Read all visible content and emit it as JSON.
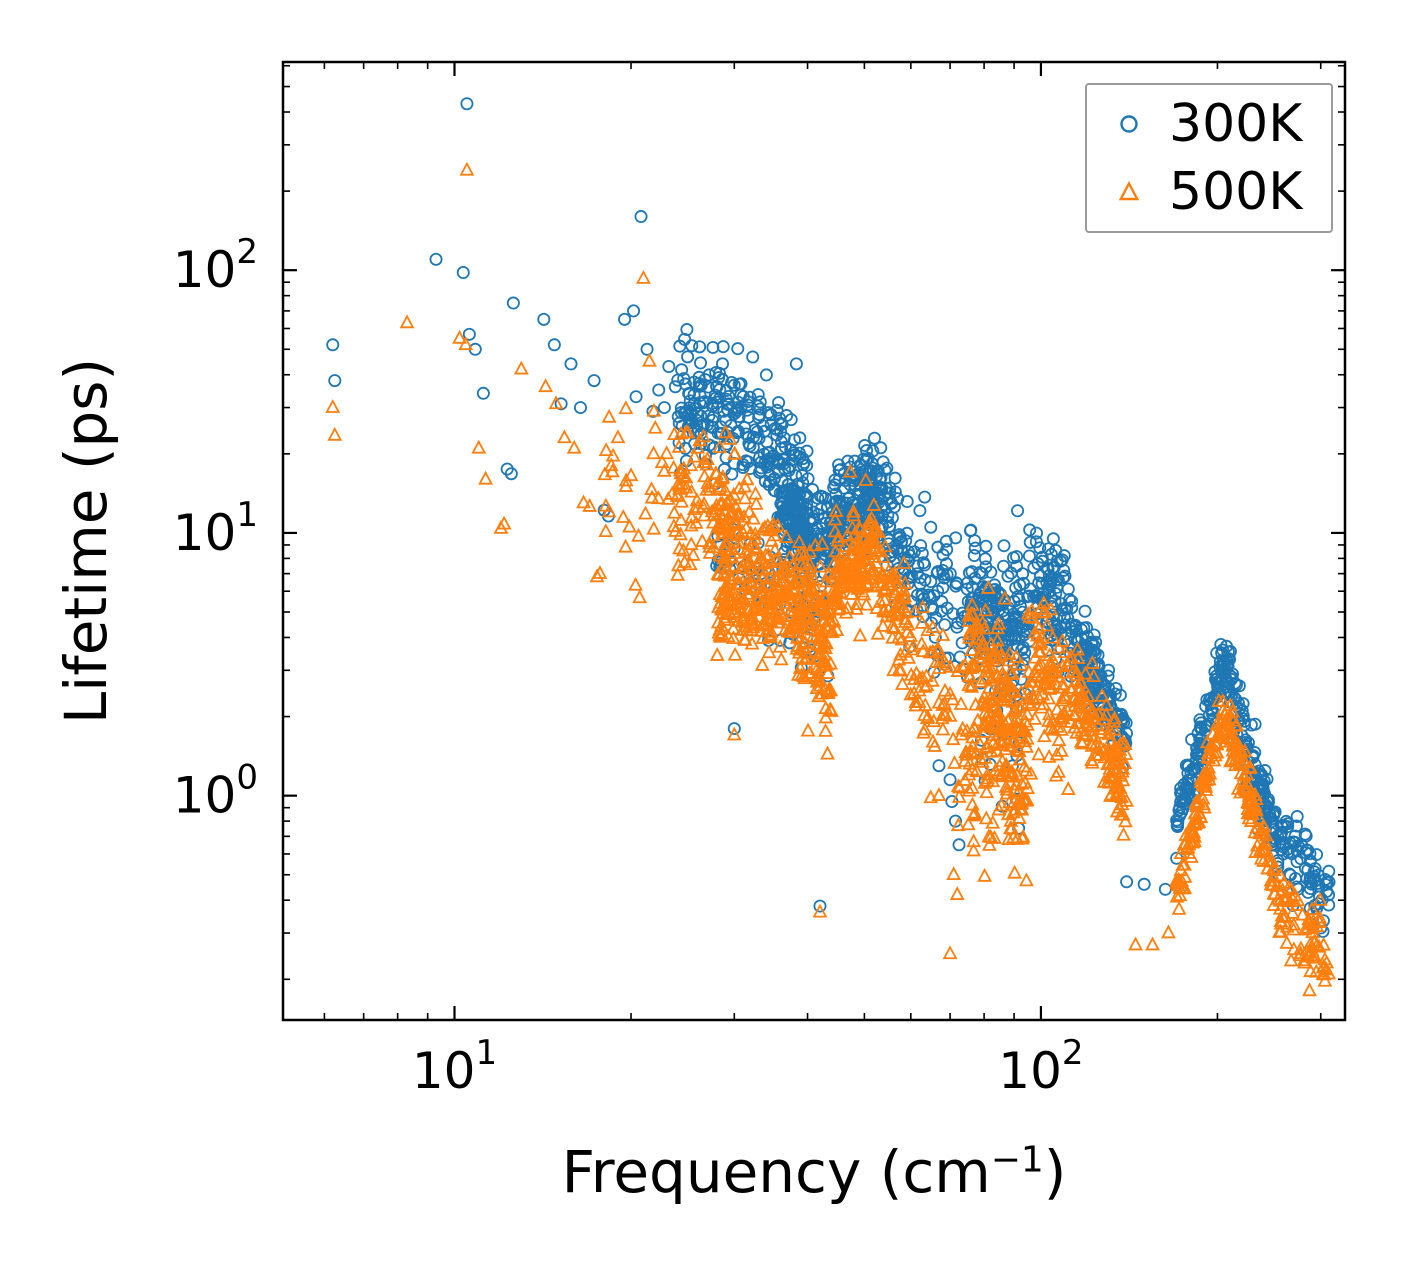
{
  "figure": {
    "ylabel": "Lifetime (ps)",
    "xlabel_pre": "Frequency (cm",
    "xlabel_sup": "−1",
    "xlabel_post": ")",
    "x_ticks": [
      {
        "value": 10,
        "base": "10",
        "exp": "1"
      },
      {
        "value": 100,
        "base": "10",
        "exp": "2"
      }
    ],
    "y_ticks": [
      {
        "value": 1,
        "base": "10",
        "exp": "0"
      },
      {
        "value": 10,
        "base": "10",
        "exp": "1"
      },
      {
        "value": 100,
        "base": "10",
        "exp": "2"
      }
    ],
    "legend": [
      {
        "label": "300K",
        "marker": "circle",
        "color": "#1f77b4"
      },
      {
        "label": "500K",
        "marker": "triangle",
        "color": "#ff7f0e"
      }
    ],
    "legend_position": "upper right"
  },
  "chart_data": {
    "type": "scatter",
    "title": "",
    "xlabel": "Frequency (cm⁻¹)",
    "ylabel": "Lifetime (ps)",
    "xscale": "log",
    "yscale": "log",
    "xlim": [
      5.1,
      330
    ],
    "ylim": [
      0.14,
      620
    ],
    "grid": false,
    "legend_position": "upper right",
    "marker_style": "open",
    "seed": 42,
    "series": [
      {
        "name": "300K",
        "marker": "circle",
        "color": "#1f77b4",
        "points": [
          [
            6.2,
            52
          ],
          [
            6.25,
            38
          ],
          [
            9.3,
            110
          ],
          [
            10.35,
            98
          ],
          [
            10.5,
            430
          ],
          [
            10.6,
            57
          ],
          [
            10.85,
            50
          ],
          [
            11.2,
            34
          ],
          [
            12.3,
            17.5
          ],
          [
            12.5,
            16.8
          ],
          [
            12.6,
            75
          ],
          [
            14.2,
            65
          ],
          [
            14.8,
            52
          ],
          [
            15.2,
            31
          ],
          [
            15.8,
            44
          ],
          [
            16.4,
            30
          ],
          [
            17.3,
            38
          ],
          [
            18.0,
            12.2
          ],
          [
            18.3,
            11.6
          ],
          [
            19.5,
            65
          ],
          [
            20.2,
            70
          ],
          [
            20.8,
            160
          ],
          [
            20.4,
            33
          ],
          [
            21.3,
            50
          ],
          [
            21.8,
            29
          ],
          [
            22.3,
            35
          ],
          [
            22.8,
            30
          ],
          [
            23.2,
            43
          ],
          [
            23.8,
            36
          ],
          [
            30.0,
            1.8
          ],
          [
            42.0,
            0.38
          ],
          [
            57.0,
            13.5
          ],
          [
            65.0,
            5.2
          ],
          [
            67.0,
            1.3
          ],
          [
            70.0,
            1.15
          ],
          [
            70.5,
            0.95
          ],
          [
            71.5,
            0.8
          ],
          [
            72.5,
            0.65
          ],
          [
            103,
            8.7
          ],
          [
            105,
            9.5
          ],
          [
            108,
            7.8
          ],
          [
            140,
            0.47
          ],
          [
            150,
            0.46
          ],
          [
            163,
            0.44
          ],
          [
            28.5,
            7.8
          ],
          [
            29.0,
            8.2
          ],
          [
            28.0,
            7.5
          ]
        ],
        "clusters": [
          {
            "n": 150,
            "x": [
              24,
              33
            ],
            "y": [
              32,
              26
            ],
            "s": 0.12
          },
          {
            "n": 120,
            "x": [
              33,
              40
            ],
            "y": [
              24,
              13
            ],
            "s": 0.12
          },
          {
            "n": 150,
            "x": [
              36,
              44
            ],
            "y": [
              12.5,
              9
            ],
            "s": 0.1
          },
          {
            "n": 170,
            "x": [
              44,
              52
            ],
            "y": [
              10.5,
              14.5
            ],
            "s": 0.09
          },
          {
            "n": 70,
            "x": [
              52,
              58
            ],
            "y": [
              14,
              9
            ],
            "s": 0.1
          },
          {
            "n": 50,
            "x": [
              58,
              66
            ],
            "y": [
              8,
              5.5
            ],
            "s": 0.12
          },
          {
            "n": 25,
            "x": [
              28,
              33
            ],
            "y": [
              8.2,
              7.8
            ],
            "s": 0.06
          },
          {
            "n": 60,
            "x": [
              33,
              44
            ],
            "y": [
              7,
              5
            ],
            "s": 0.15
          },
          {
            "n": 40,
            "x": [
              66,
              75
            ],
            "y": [
              6,
              4.5
            ],
            "s": 0.15
          },
          {
            "n": 180,
            "x": [
              75,
              95
            ],
            "y": [
              5.5,
              4.2
            ],
            "s": 0.13
          },
          {
            "n": 30,
            "x": [
              78,
              92
            ],
            "y": [
              2.2,
              1.6
            ],
            "s": 0.18
          },
          {
            "n": 90,
            "x": [
              95,
              112
            ],
            "y": [
              6.5,
              5
            ],
            "s": 0.11
          },
          {
            "n": 160,
            "x": [
              112,
              140
            ],
            "y": [
              4.2,
              1.7
            ],
            "s": 0.08
          },
          {
            "n": 120,
            "x": [
              170,
              205
            ],
            "y": [
              0.75,
              3.2
            ],
            "s": 0.06
          },
          {
            "n": 140,
            "x": [
              205,
              255
            ],
            "y": [
              3.2,
              0.6
            ],
            "s": 0.06
          },
          {
            "n": 80,
            "x": [
              255,
              310
            ],
            "y": [
              0.65,
              0.42
            ],
            "s": 0.08
          }
        ]
      },
      {
        "name": "500K",
        "marker": "triangle",
        "color": "#ff7f0e",
        "points": [
          [
            6.2,
            30
          ],
          [
            6.25,
            23.5
          ],
          [
            8.3,
            63
          ],
          [
            10.2,
            55
          ],
          [
            10.45,
            52
          ],
          [
            10.5,
            240
          ],
          [
            11.0,
            21
          ],
          [
            11.3,
            16
          ],
          [
            12.0,
            10.4
          ],
          [
            12.15,
            10.8
          ],
          [
            13.0,
            42
          ],
          [
            14.3,
            36
          ],
          [
            14.9,
            31
          ],
          [
            15.4,
            23
          ],
          [
            16.0,
            21
          ],
          [
            16.6,
            13
          ],
          [
            17.0,
            12.6
          ],
          [
            17.5,
            6.8
          ],
          [
            17.7,
            7.0
          ],
          [
            18.5,
            18
          ],
          [
            19.0,
            23
          ],
          [
            19.6,
            15
          ],
          [
            20.0,
            16.5
          ],
          [
            20.6,
            9.7
          ],
          [
            21.0,
            93
          ],
          [
            21.5,
            45
          ],
          [
            22.0,
            25
          ],
          [
            22.6,
            18.5
          ],
          [
            23.0,
            20
          ],
          [
            23.5,
            14
          ],
          [
            25.0,
            24
          ],
          [
            26.0,
            21
          ],
          [
            27.0,
            19
          ],
          [
            30.0,
            1.7
          ],
          [
            42.0,
            0.36
          ],
          [
            62.0,
            2.5
          ],
          [
            63.5,
            2.2
          ],
          [
            67.0,
            1.0
          ],
          [
            70.0,
            0.25
          ],
          [
            71.0,
            0.5
          ],
          [
            72.0,
            0.42
          ],
          [
            135,
            1.0
          ],
          [
            140,
            0.95
          ],
          [
            145,
            0.27
          ],
          [
            155,
            0.27
          ],
          [
            165,
            0.3
          ]
        ],
        "clusters": [
          {
            "n": 30,
            "x": [
              18,
              24
            ],
            "y": [
              16,
              12
            ],
            "s": 0.18
          },
          {
            "n": 80,
            "x": [
              24,
              30
            ],
            "y": [
              15,
              11
            ],
            "s": 0.14
          },
          {
            "n": 120,
            "x": [
              28,
              35
            ],
            "y": [
              11,
              7
            ],
            "s": 0.14
          },
          {
            "n": 100,
            "x": [
              28,
              35
            ],
            "y": [
              5.6,
              5.0
            ],
            "s": 0.08
          },
          {
            "n": 180,
            "x": [
              35,
              44
            ],
            "y": [
              6.5,
              4.5
            ],
            "s": 0.13
          },
          {
            "n": 50,
            "x": [
              38,
              44
            ],
            "y": [
              3.5,
              2.6
            ],
            "s": 0.12
          },
          {
            "n": 160,
            "x": [
              44,
              52
            ],
            "y": [
              6,
              9
            ],
            "s": 0.1
          },
          {
            "n": 80,
            "x": [
              52,
              60
            ],
            "y": [
              7,
              4
            ],
            "s": 0.11
          },
          {
            "n": 40,
            "x": [
              60,
              68
            ],
            "y": [
              3.5,
              2.2
            ],
            "s": 0.14
          },
          {
            "n": 50,
            "x": [
              68,
              78
            ],
            "y": [
              2.2,
              1.2
            ],
            "s": 0.2
          },
          {
            "n": 200,
            "x": [
              75,
              95
            ],
            "y": [
              3.4,
              1.4
            ],
            "s": 0.16
          },
          {
            "n": 40,
            "x": [
              80,
              95
            ],
            "y": [
              0.9,
              0.8
            ],
            "s": 0.12
          },
          {
            "n": 100,
            "x": [
              95,
              112
            ],
            "y": [
              3.2,
              2.2
            ],
            "s": 0.13
          },
          {
            "n": 140,
            "x": [
              112,
              140
            ],
            "y": [
              2.4,
              1.1
            ],
            "s": 0.1
          },
          {
            "n": 110,
            "x": [
              170,
              205
            ],
            "y": [
              0.42,
              2.1
            ],
            "s": 0.05
          },
          {
            "n": 130,
            "x": [
              205,
              260
            ],
            "y": [
              2.1,
              0.35
            ],
            "s": 0.05
          },
          {
            "n": 70,
            "x": [
              255,
              310
            ],
            "y": [
              0.35,
              0.24
            ],
            "s": 0.08
          }
        ]
      }
    ]
  }
}
